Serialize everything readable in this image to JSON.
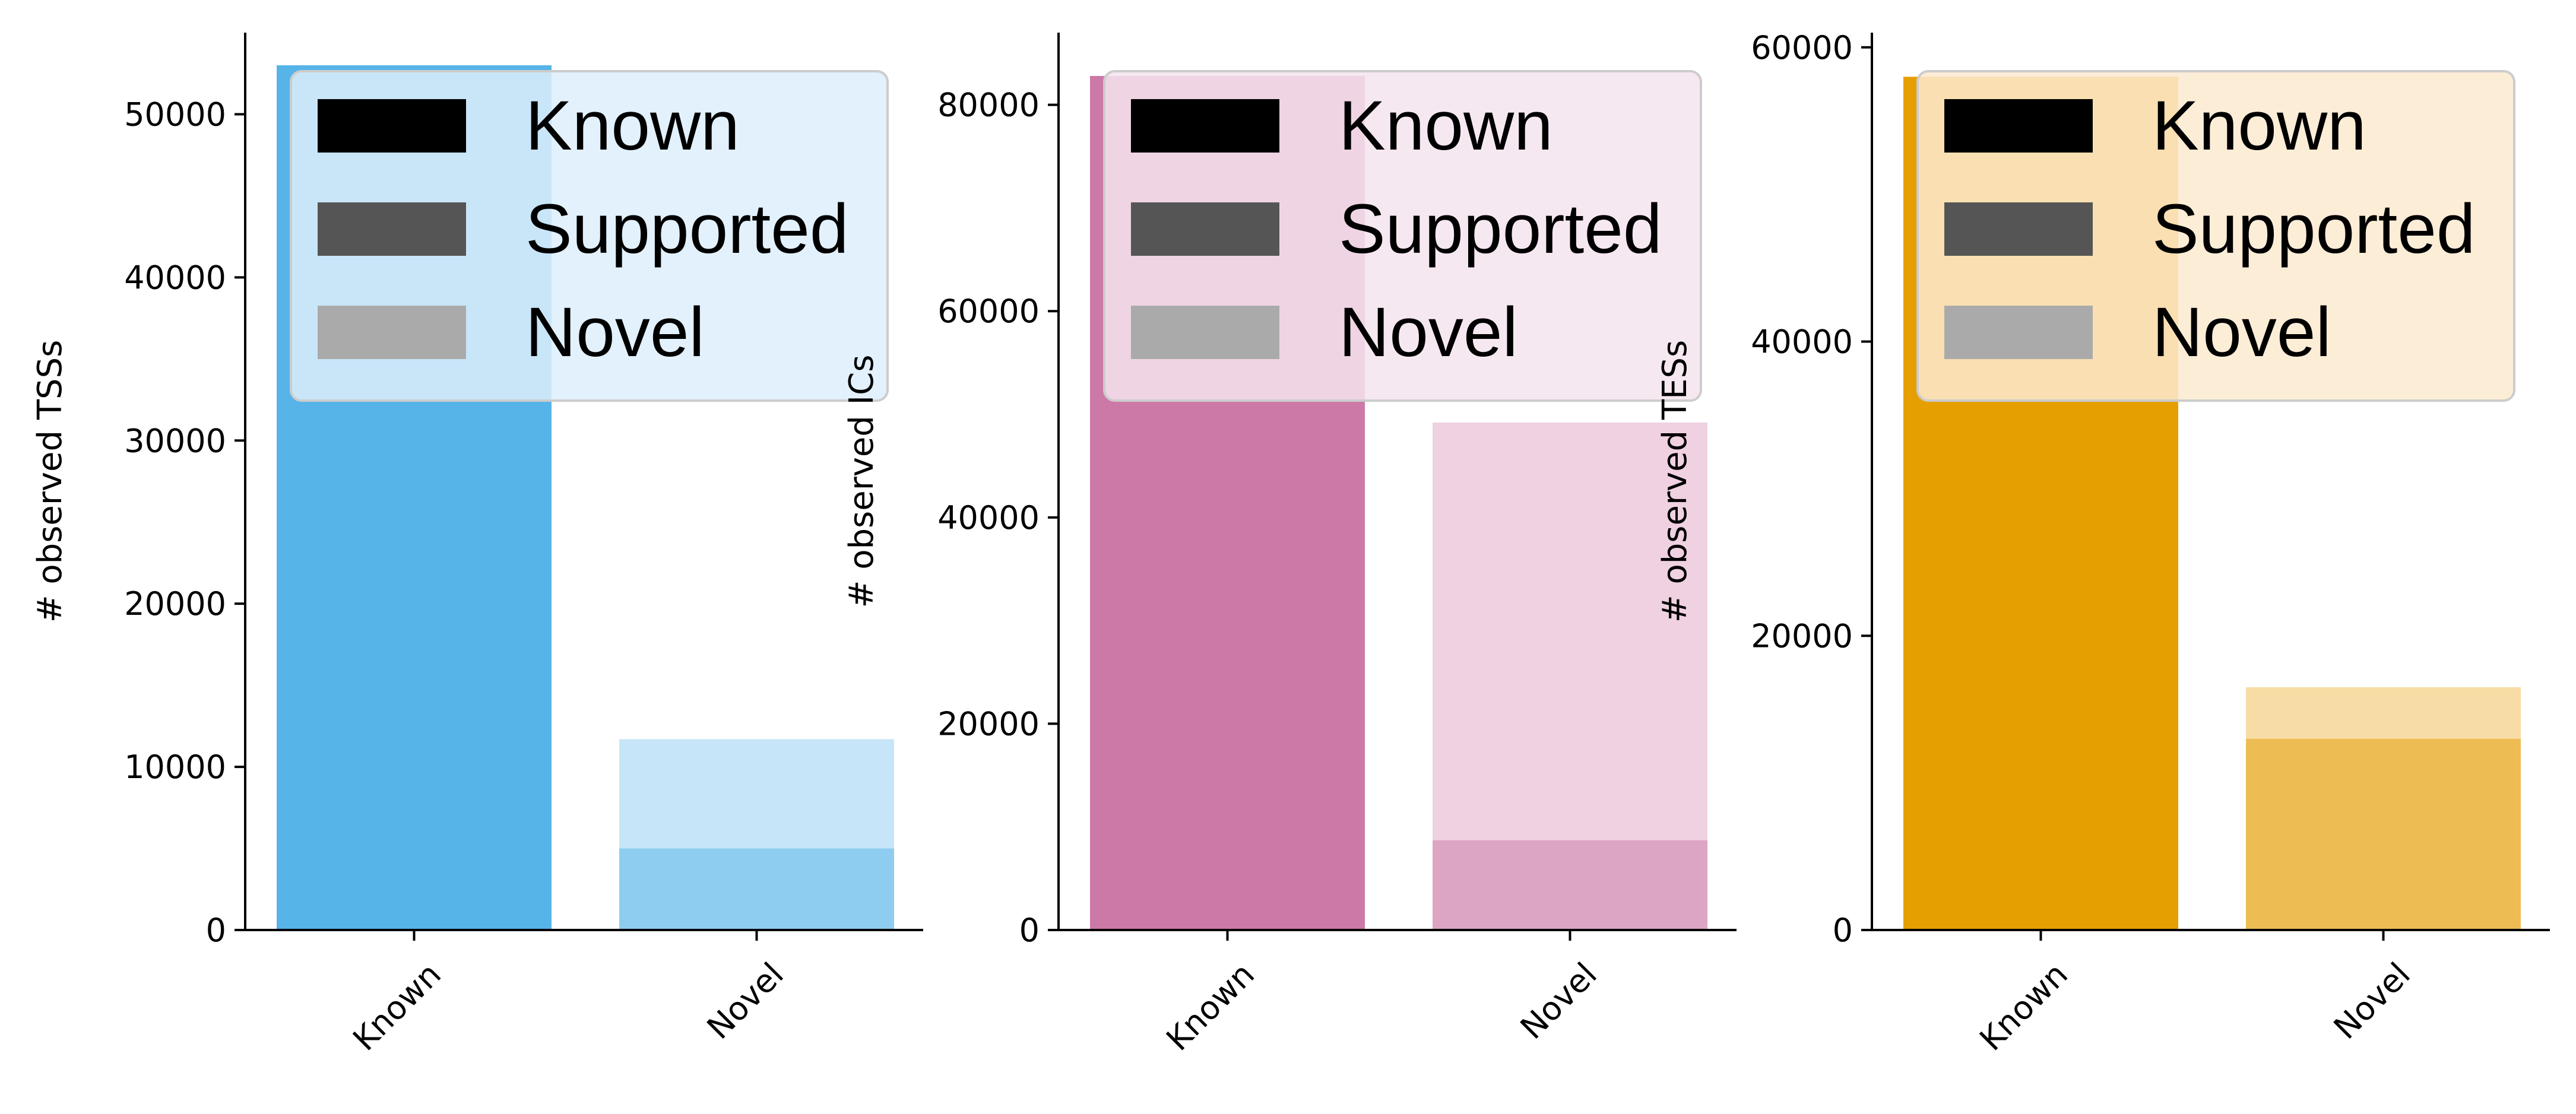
{
  "chart_data": [
    {
      "type": "bar",
      "stacked": "overlay",
      "categories": [
        "Known",
        "Novel"
      ],
      "ylabel": "# observed TSSs",
      "ylim": [
        0,
        55000
      ],
      "yticks": [
        0,
        10000,
        20000,
        30000,
        40000,
        50000
      ],
      "bars": [
        {
          "category": "Known",
          "segments": [
            {
              "level": "Known",
              "value": 53000,
              "color": "#56b4e9"
            }
          ]
        },
        {
          "category": "Novel",
          "segments": [
            {
              "level": "Novel",
              "value": 11700,
              "color": "#c7e5f8"
            },
            {
              "level": "Supported",
              "value": 5000,
              "color": "#8ecdf0"
            }
          ]
        }
      ],
      "legend": {
        "placement": "upper right",
        "entries": [
          {
            "label": "Known",
            "color": "#000000"
          },
          {
            "label": "Supported",
            "color": "#555555"
          },
          {
            "label": "Novel",
            "color": "#aaaaaa"
          }
        ],
        "background": "#ddeefb"
      }
    },
    {
      "type": "bar",
      "stacked": "overlay",
      "categories": [
        "Known",
        "Novel"
      ],
      "ylabel": "# observed ICs",
      "ylim": [
        0,
        87000
      ],
      "yticks": [
        0,
        20000,
        40000,
        60000,
        80000
      ],
      "bars": [
        {
          "category": "Known",
          "segments": [
            {
              "level": "Known",
              "value": 82800,
              "color": "#cc79a7"
            }
          ]
        },
        {
          "category": "Novel",
          "segments": [
            {
              "level": "Novel",
              "value": 49200,
              "color": "#efd1e1"
            },
            {
              "level": "Supported",
              "value": 8700,
              "color": "#dda5c4"
            }
          ]
        }
      ],
      "legend": {
        "placement": "upper right",
        "entries": [
          {
            "label": "Known",
            "color": "#000000"
          },
          {
            "label": "Supported",
            "color": "#555555"
          },
          {
            "label": "Novel",
            "color": "#aaaaaa"
          }
        ],
        "background": "#f5e4ee"
      }
    },
    {
      "type": "bar",
      "stacked": "overlay",
      "categories": [
        "Known",
        "Novel"
      ],
      "ylabel": "# observed TESs",
      "ylim": [
        0,
        61000
      ],
      "yticks": [
        0,
        20000,
        40000,
        60000
      ],
      "bars": [
        {
          "category": "Known",
          "segments": [
            {
              "level": "Known",
              "value": 58000,
              "color": "#e69f00"
            }
          ]
        },
        {
          "category": "Novel",
          "segments": [
            {
              "level": "Novel",
              "value": 16500,
              "color": "#f7dda5"
            },
            {
              "level": "Supported",
              "value": 13000,
              "color": "#edbd54"
            }
          ]
        }
      ],
      "legend": {
        "placement": "upper right",
        "entries": [
          {
            "label": "Known",
            "color": "#000000"
          },
          {
            "label": "Supported",
            "color": "#555555"
          },
          {
            "label": "Novel",
            "color": "#aaaaaa"
          }
        ],
        "background": "#fbead0"
      }
    }
  ]
}
